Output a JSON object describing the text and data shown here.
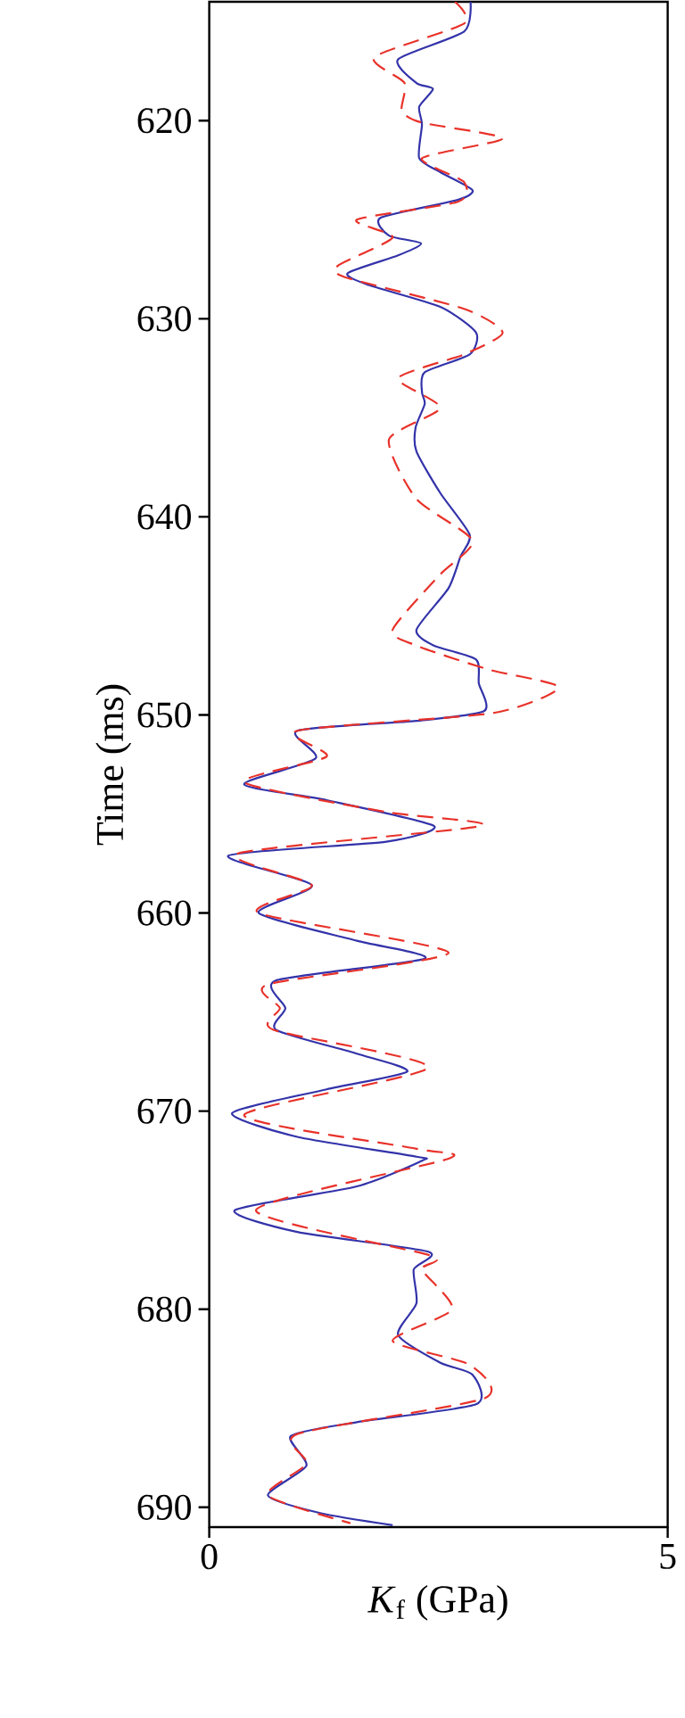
{
  "chart_data": {
    "type": "line",
    "xlabel": "*K*$_{f}$ (GPa)",
    "ylabel": "Time (ms)",
    "xlim": [
      0,
      5
    ],
    "xticks": [
      0,
      5
    ],
    "ylim": [
      691,
      614
    ],
    "yticks": [
      620,
      630,
      640,
      650,
      660,
      670,
      680,
      690
    ],
    "series": [
      {
        "color": "#3333aa",
        "line_style": "solid",
        "x": [
          2.85,
          2.78,
          2.06,
          2.26,
          2.44,
          2.29,
          2.32,
          2.29,
          2.52,
          2.87,
          2.71,
          1.87,
          1.96,
          2.31,
          2.06,
          1.51,
          1.74,
          2.52,
          2.91,
          2.84,
          2.35,
          2.32,
          2.35,
          2.25,
          2.26,
          2.52,
          2.84,
          2.74,
          2.61,
          2.26,
          2.45,
          2.91,
          2.94,
          3.0,
          2.26,
          0.96,
          1.16,
          0.38,
          1.28,
          2.45,
          1.93,
          0.21,
          1.12,
          0.54,
          1.61,
          2.35,
          0.73,
          0.83,
          0.73,
          1.61,
          2.16,
          1.28,
          0.25,
          0.96,
          2.26,
          2.32,
          1.61,
          0.28,
          0.96,
          2.39,
          2.23,
          2.26,
          2.06,
          2.52,
          2.87,
          2.91,
          1.61,
          0.89,
          1.06,
          0.64,
          1.22,
          2.0
        ],
        "values": [
          614.0,
          615.5,
          616.9,
          618.1,
          618.4,
          619.3,
          620.2,
          621.9,
          622.6,
          623.5,
          624.0,
          624.9,
          625.8,
          626.2,
          626.8,
          627.7,
          628.3,
          629.4,
          630.7,
          631.8,
          632.7,
          633.7,
          634.3,
          635.5,
          636.7,
          638.8,
          640.9,
          642.0,
          643.6,
          645.7,
          646.5,
          647.2,
          648.4,
          649.8,
          650.3,
          650.8,
          652.2,
          653.5,
          654.3,
          655.6,
          656.4,
          657.1,
          658.6,
          660.0,
          661.4,
          662.3,
          663.4,
          664.8,
          665.9,
          667.1,
          668.0,
          668.9,
          670.1,
          671.3,
          672.3,
          672.5,
          673.8,
          675.0,
          676.1,
          677.1,
          678.0,
          679.7,
          681.3,
          682.7,
          683.3,
          684.8,
          685.7,
          686.4,
          687.9,
          689.4,
          690.3,
          690.9
        ]
      },
      {
        "color": "#e8322a",
        "line_style": "dashed",
        "x": [
          2.68,
          2.78,
          1.8,
          2.13,
          2.1,
          2.32,
          3.2,
          2.32,
          2.78,
          2.71,
          1.61,
          2.0,
          1.41,
          1.48,
          2.78,
          3.2,
          2.78,
          2.06,
          2.52,
          1.96,
          2.26,
          2.87,
          2.52,
          2.0,
          2.26,
          3.04,
          3.81,
          3.1,
          0.96,
          1.28,
          0.38,
          1.93,
          2.97,
          0.31,
          1.12,
          0.54,
          2.61,
          0.64,
          0.77,
          0.7,
          2.39,
          0.38,
          2.26,
          2.61,
          0.51,
          2.42,
          2.32,
          2.65,
          2.0,
          2.84,
          3.0,
          0.96,
          1.06,
          0.64,
          1.54
        ],
        "values": [
          614.0,
          615.1,
          616.8,
          618.1,
          619.5,
          620.1,
          620.9,
          621.9,
          623.1,
          624.1,
          625.0,
          625.9,
          627.3,
          627.9,
          629.5,
          630.7,
          631.8,
          633.0,
          634.5,
          636.1,
          639.1,
          641.2,
          642.9,
          645.7,
          646.5,
          647.7,
          648.6,
          649.9,
          650.8,
          652.1,
          653.4,
          654.9,
          655.6,
          657.0,
          658.6,
          660.0,
          662.0,
          663.6,
          664.8,
          665.9,
          667.8,
          670.2,
          671.9,
          672.4,
          675.0,
          677.3,
          678.0,
          680.0,
          681.6,
          682.8,
          684.5,
          686.3,
          687.8,
          689.4,
          690.8
        ]
      }
    ]
  }
}
